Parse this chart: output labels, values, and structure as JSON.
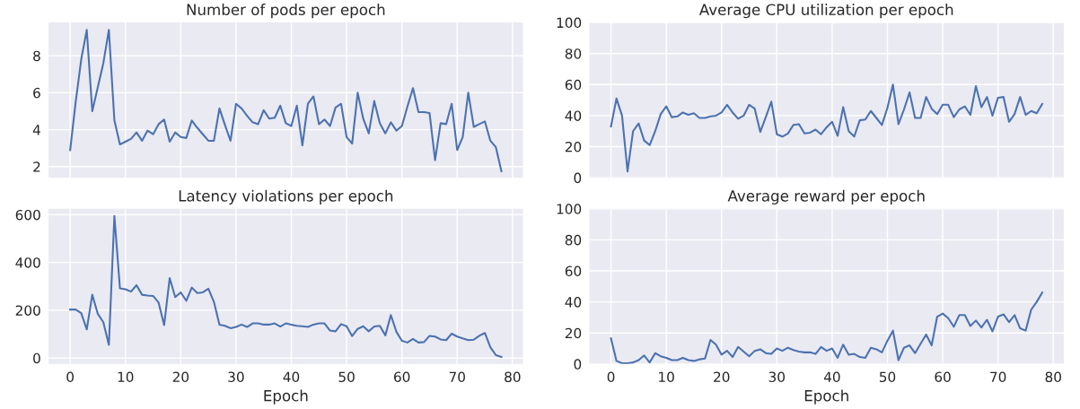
{
  "chart_data": [
    {
      "type": "line",
      "title": "Number of pods per epoch",
      "xlim": [
        -3.9,
        81.9
      ],
      "xticks": [
        0,
        10,
        20,
        30,
        40,
        50,
        60,
        70,
        80
      ],
      "ylim": [
        1.4,
        9.8
      ],
      "yticks": [
        2,
        4,
        6,
        8
      ],
      "grid": true,
      "tick_labels": "y",
      "x": [
        0,
        1,
        2,
        3,
        4,
        5,
        6,
        7,
        8,
        9,
        10,
        11,
        12,
        13,
        14,
        15,
        16,
        17,
        18,
        19,
        20,
        21,
        22,
        23,
        24,
        25,
        26,
        27,
        28,
        29,
        30,
        31,
        32,
        33,
        34,
        35,
        36,
        37,
        38,
        39,
        40,
        41,
        42,
        43,
        44,
        45,
        46,
        47,
        48,
        49,
        50,
        51,
        52,
        53,
        54,
        55,
        56,
        57,
        58,
        59,
        60,
        61,
        62,
        63,
        64,
        65,
        66,
        67,
        68,
        69,
        70,
        71,
        72,
        73,
        74,
        75,
        76,
        77,
        78
      ],
      "series": [
        {
          "color": "#4c72b0",
          "values": [
            2.9,
            5.5,
            7.8,
            9.4,
            5.0,
            6.3,
            7.6,
            9.4,
            4.5,
            3.2,
            3.35,
            3.5,
            3.85,
            3.4,
            3.95,
            3.75,
            4.3,
            4.55,
            3.35,
            3.85,
            3.6,
            3.55,
            4.5,
            4.1,
            3.75,
            3.4,
            3.4,
            5.15,
            4.25,
            3.4,
            5.4,
            5.15,
            4.75,
            4.4,
            4.3,
            5.05,
            4.6,
            4.65,
            5.3,
            4.35,
            4.2,
            5.3,
            3.15,
            5.4,
            5.8,
            4.3,
            4.55,
            4.2,
            5.2,
            5.4,
            3.6,
            3.25,
            6.0,
            4.6,
            3.8,
            5.55,
            4.35,
            3.8,
            4.4,
            3.95,
            4.2,
            5.25,
            6.25,
            4.95,
            4.95,
            4.9,
            2.35,
            4.35,
            4.3,
            5.4,
            2.9,
            3.6,
            6.0,
            4.15,
            4.3,
            4.45,
            3.4,
            3.05,
            1.75
          ]
        }
      ]
    },
    {
      "type": "line",
      "title": "Average CPU utilization per epoch",
      "xlim": [
        -3.9,
        81.9
      ],
      "xticks": [
        0,
        10,
        20,
        30,
        40,
        50,
        60,
        70,
        80
      ],
      "ylim": [
        0,
        100
      ],
      "yticks": [
        0,
        20,
        40,
        60,
        80,
        100
      ],
      "grid": true,
      "tick_labels": "y",
      "x": [
        0,
        1,
        2,
        3,
        4,
        5,
        6,
        7,
        8,
        9,
        10,
        11,
        12,
        13,
        14,
        15,
        16,
        17,
        18,
        19,
        20,
        21,
        22,
        23,
        24,
        25,
        26,
        27,
        28,
        29,
        30,
        31,
        32,
        33,
        34,
        35,
        36,
        37,
        38,
        39,
        40,
        41,
        42,
        43,
        44,
        45,
        46,
        47,
        48,
        49,
        50,
        51,
        52,
        53,
        54,
        55,
        56,
        57,
        58,
        59,
        60,
        61,
        62,
        63,
        64,
        65,
        66,
        67,
        68,
        69,
        70,
        71,
        72,
        73,
        74,
        75,
        76,
        77,
        78
      ],
      "series": [
        {
          "color": "#4c72b0",
          "values": [
            33,
            51,
            40,
            4,
            30,
            35,
            24,
            21,
            30,
            41,
            46,
            39,
            39.5,
            42,
            40.5,
            41.5,
            38.5,
            38.5,
            39.5,
            40,
            42,
            47,
            42,
            38,
            40,
            47,
            44.5,
            29.5,
            39,
            49,
            28,
            26.5,
            28.5,
            34,
            34.5,
            28.5,
            29,
            31,
            28,
            32.5,
            36,
            27,
            45.5,
            30,
            26.5,
            37,
            37.5,
            43,
            38.5,
            34,
            45,
            60,
            34.5,
            44,
            55,
            38.5,
            38.5,
            52,
            44.5,
            41,
            47,
            47,
            39,
            44,
            46,
            40.5,
            59,
            45.5,
            52,
            40,
            51.5,
            52,
            36,
            41,
            52,
            40.5,
            43,
            41.5,
            47.5
          ]
        }
      ]
    },
    {
      "type": "line",
      "title": "Latency violations per epoch",
      "xlabel": "Epoch",
      "xlim": [
        -3.9,
        81.9
      ],
      "xticks": [
        0,
        10,
        20,
        30,
        40,
        50,
        60,
        70,
        80
      ],
      "ylim": [
        -25,
        625
      ],
      "yticks": [
        0,
        200,
        400,
        600
      ],
      "grid": true,
      "x": [
        0,
        1,
        2,
        3,
        4,
        5,
        6,
        7,
        8,
        9,
        10,
        11,
        12,
        13,
        14,
        15,
        16,
        17,
        18,
        19,
        20,
        21,
        22,
        23,
        24,
        25,
        26,
        27,
        28,
        29,
        30,
        31,
        32,
        33,
        34,
        35,
        36,
        37,
        38,
        39,
        40,
        41,
        42,
        43,
        44,
        45,
        46,
        47,
        48,
        49,
        50,
        51,
        52,
        53,
        54,
        55,
        56,
        57,
        58,
        59,
        60,
        61,
        62,
        63,
        64,
        65,
        66,
        67,
        68,
        69,
        70,
        71,
        72,
        73,
        74,
        75,
        76,
        77,
        78
      ],
      "series": [
        {
          "color": "#4c72b0",
          "values": [
            203,
            203,
            188,
            120,
            265,
            185,
            150,
            55,
            595,
            292,
            288,
            278,
            305,
            265,
            262,
            260,
            232,
            138,
            335,
            255,
            275,
            240,
            295,
            272,
            275,
            290,
            235,
            140,
            135,
            125,
            130,
            140,
            130,
            145,
            145,
            140,
            140,
            145,
            132,
            145,
            140,
            135,
            133,
            130,
            140,
            145,
            145,
            115,
            112,
            142,
            133,
            92,
            122,
            133,
            112,
            132,
            135,
            95,
            180,
            110,
            72,
            65,
            80,
            65,
            67,
            93,
            90,
            78,
            75,
            102,
            90,
            82,
            75,
            77,
            93,
            105,
            45,
            12,
            5
          ]
        }
      ]
    },
    {
      "type": "line",
      "title": "Average reward per epoch",
      "xlabel": "Epoch",
      "xlim": [
        -3.9,
        81.9
      ],
      "xticks": [
        0,
        10,
        20,
        30,
        40,
        50,
        60,
        70,
        80
      ],
      "ylim": [
        0,
        100
      ],
      "yticks": [
        0,
        20,
        40,
        60,
        80,
        100
      ],
      "grid": true,
      "x": [
        0,
        1,
        2,
        3,
        4,
        5,
        6,
        7,
        8,
        9,
        10,
        11,
        12,
        13,
        14,
        15,
        16,
        17,
        18,
        19,
        20,
        21,
        22,
        23,
        24,
        25,
        26,
        27,
        28,
        29,
        30,
        31,
        32,
        33,
        34,
        35,
        36,
        37,
        38,
        39,
        40,
        41,
        42,
        43,
        44,
        45,
        46,
        47,
        48,
        49,
        50,
        51,
        52,
        53,
        54,
        55,
        56,
        57,
        58,
        59,
        60,
        61,
        62,
        63,
        64,
        65,
        66,
        67,
        68,
        69,
        70,
        71,
        72,
        73,
        74,
        75,
        76,
        77,
        78
      ],
      "series": [
        {
          "color": "#4c72b0",
          "values": [
            16.5,
            2,
            0.5,
            0.5,
            1,
            2.5,
            5.5,
            1,
            7,
            5,
            4,
            2.5,
            2.5,
            4,
            2.5,
            2,
            3,
            3.5,
            15.5,
            12.5,
            6,
            8.5,
            4.5,
            11,
            8,
            5,
            8.5,
            9.5,
            7,
            6.5,
            10,
            8.5,
            10.5,
            9,
            8,
            7.5,
            7.5,
            6.5,
            11,
            8.5,
            10,
            4,
            12.5,
            6,
            6.5,
            4.5,
            4,
            10.5,
            9.5,
            7.5,
            15,
            21.5,
            2.5,
            10.5,
            12,
            7,
            13,
            19,
            12,
            30.5,
            32.5,
            29.5,
            24,
            31.5,
            31.5,
            24.5,
            28,
            23.5,
            28.5,
            21,
            30.5,
            32,
            27,
            31.5,
            23,
            21.5,
            35,
            40,
            46
          ]
        }
      ]
    }
  ]
}
